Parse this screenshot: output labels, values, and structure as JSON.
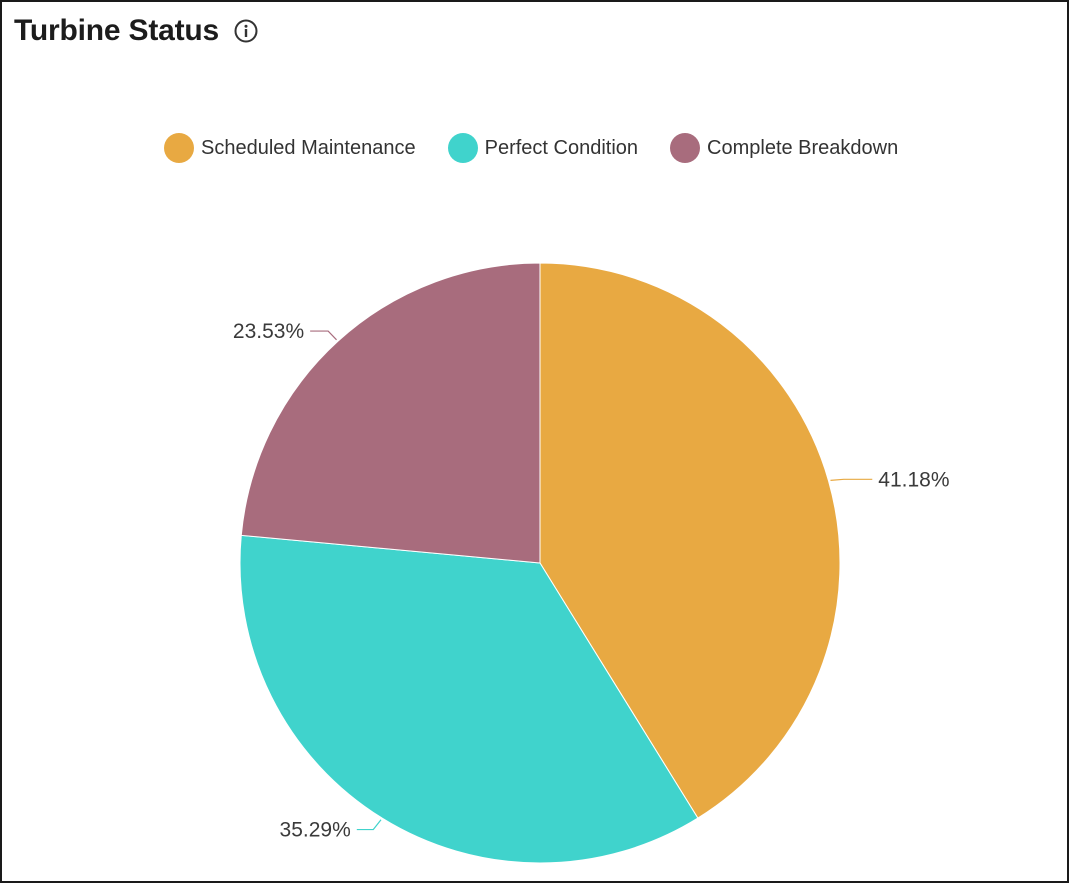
{
  "header": {
    "title": "Turbine Status",
    "info_icon": "info-icon"
  },
  "chart_data": {
    "type": "pie",
    "title": "Turbine Status",
    "legend_position": "top-center",
    "categories": [
      "Scheduled Maintenance",
      "Perfect Condition",
      "Complete Breakdown"
    ],
    "values": [
      41.18,
      35.29,
      23.53
    ],
    "labels": [
      "41.18%",
      "35.29%",
      "23.53%"
    ],
    "colors": [
      "#E8A942",
      "#40D3CC",
      "#A86C7D"
    ]
  }
}
